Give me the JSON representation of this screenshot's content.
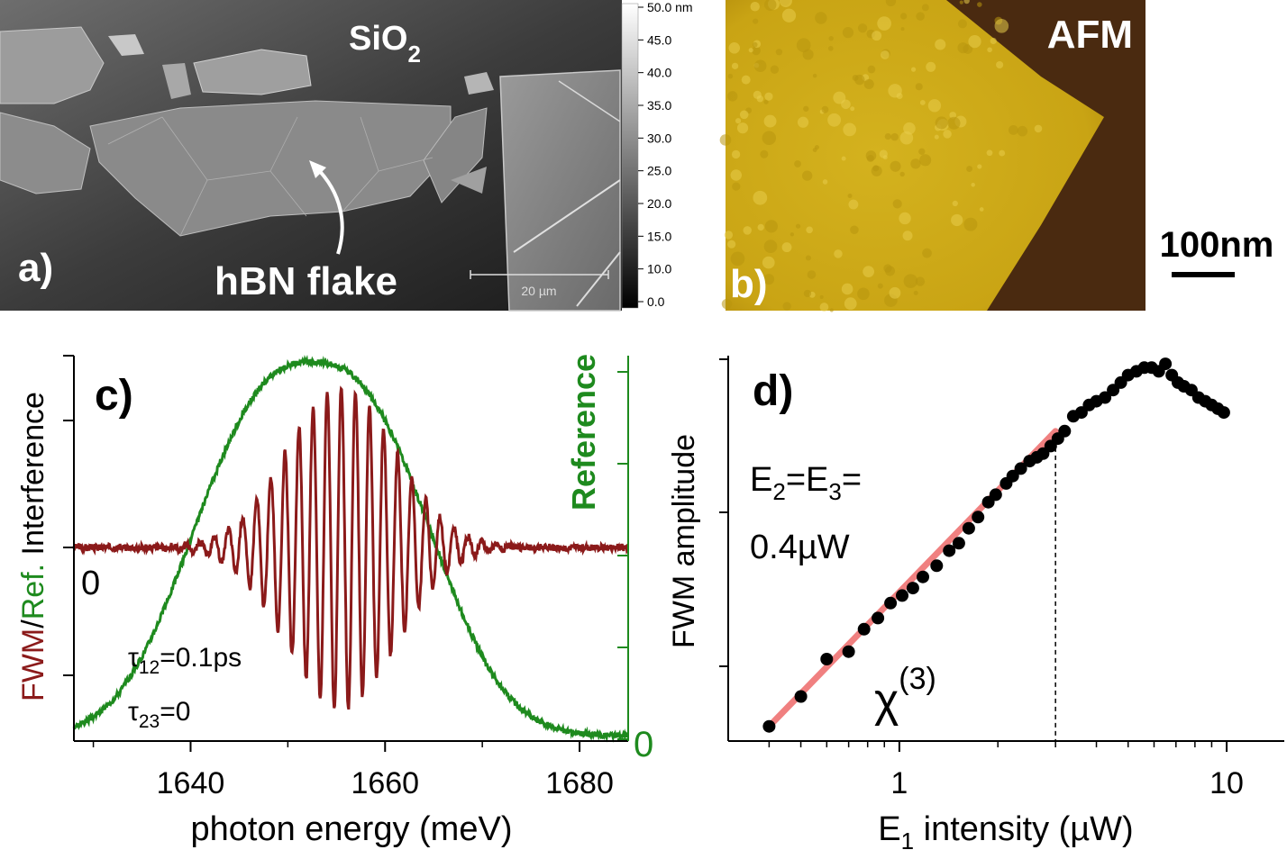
{
  "panel_a": {
    "label": "a)",
    "substrate": "SiO",
    "substrate_sub": "2",
    "flake_label": "hBN flake",
    "scale_bar": "20 µm",
    "colorbar_ticks": [
      "50.0 nm",
      "45.0",
      "40.0",
      "35.0",
      "30.0",
      "25.0",
      "20.0",
      "15.0",
      "10.0",
      "0.0"
    ]
  },
  "panel_b": {
    "label": "b)",
    "title": "AFM",
    "scale_bar": "100nm"
  },
  "panel_c": {
    "label": "c)",
    "zero_left": "0",
    "zero_right": "0",
    "tau12_sym": "τ",
    "tau12_sub": "12",
    "tau12_val": "=0.1ps",
    "tau23_sym": "τ",
    "tau23_sub": "23",
    "tau23_val": "=0",
    "ylabel_fwm": "FWM",
    "ylabel_slash": "/",
    "ylabel_ref": "Ref.",
    "ylabel_rest": " Interference",
    "ylabel_right": "Reference",
    "xlabel": "photon energy (meV)",
    "colors": {
      "fwm": "#8b1a1a",
      "reference": "#1e8a1e"
    }
  },
  "panel_d": {
    "label": "d)",
    "annot_line1_a": "E",
    "annot_line1_sub1": "2",
    "annot_line1_b": "=E",
    "annot_line1_sub2": "3",
    "annot_line1_c": "=",
    "annot_line2": "0.4µW",
    "chi": "χ",
    "chi_sup": "(3)",
    "ylabel": "FWM amplitude",
    "xlabel_a": "E",
    "xlabel_sub": "1",
    "xlabel_b": " intensity (µW)",
    "colors": {
      "points": "#000000",
      "fit": "#f08080"
    }
  },
  "chart_data": [
    {
      "type": "line",
      "title": "c)",
      "xlabel": "photon energy (meV)",
      "ylabel": "FWM/Ref. Interference",
      "y2label": "Reference",
      "xlim": [
        1628,
        1685
      ],
      "x_ticks": [
        1640,
        1660,
        1680
      ],
      "series": [
        {
          "name": "FWM/Ref. interference",
          "color": "#8b1a1a",
          "model": "oscillation",
          "center": 1655.5,
          "sigma": 5.6,
          "period": 1.45,
          "amplitude": 0.9
        },
        {
          "name": "Reference",
          "color": "#1e8a1e",
          "model": "supergauss",
          "center": 1652.5,
          "width": 14.2,
          "power": 2.6,
          "peak": 1.0
        }
      ]
    },
    {
      "type": "scatter",
      "title": "d)",
      "xlabel": "E1 intensity (µW)",
      "ylabel": "FWM amplitude",
      "xscale": "log",
      "xlim": [
        0.3,
        15
      ],
      "x_ticks": [
        1,
        10
      ],
      "x_tick_labels": [
        "1",
        "10"
      ],
      "y_ticks": [
        0.1,
        0.5,
        0.9
      ],
      "series": [
        {
          "name": "measured FWM amplitude",
          "color": "#000000",
          "x": [
            0.4,
            0.5,
            0.6,
            0.7,
            0.78,
            0.86,
            0.94,
            1.02,
            1.1,
            1.18,
            1.3,
            1.42,
            1.52,
            1.63,
            1.74,
            1.87,
            1.97,
            2.12,
            2.22,
            2.35,
            2.5,
            2.63,
            2.75,
            2.9,
            3.05,
            3.2,
            3.4,
            3.6,
            3.8,
            4.0,
            4.25,
            4.5,
            4.75,
            5.0,
            5.3,
            5.6,
            5.9,
            6.2,
            6.5,
            6.8,
            7.1,
            7.4,
            7.8,
            8.2,
            8.6,
            9.0,
            9.4,
            9.8
          ],
          "y": [
            0.02,
            0.1,
            0.2,
            0.22,
            0.28,
            0.31,
            0.35,
            0.37,
            0.39,
            0.42,
            0.45,
            0.49,
            0.51,
            0.55,
            0.58,
            0.62,
            0.64,
            0.67,
            0.69,
            0.71,
            0.73,
            0.74,
            0.75,
            0.77,
            0.79,
            0.81,
            0.85,
            0.86,
            0.88,
            0.89,
            0.9,
            0.92,
            0.94,
            0.96,
            0.97,
            0.98,
            0.98,
            0.97,
            0.99,
            0.96,
            0.94,
            0.93,
            0.92,
            0.9,
            0.89,
            0.88,
            0.87,
            0.86
          ]
        },
        {
          "name": "chi(3) linear fit",
          "color": "#f08080",
          "x": [
            0.4,
            3.0
          ],
          "y": [
            0.02,
            0.81
          ]
        }
      ],
      "annotations": [
        {
          "text": "dashed vertical at 3 µW",
          "x": 3.0
        }
      ]
    }
  ]
}
